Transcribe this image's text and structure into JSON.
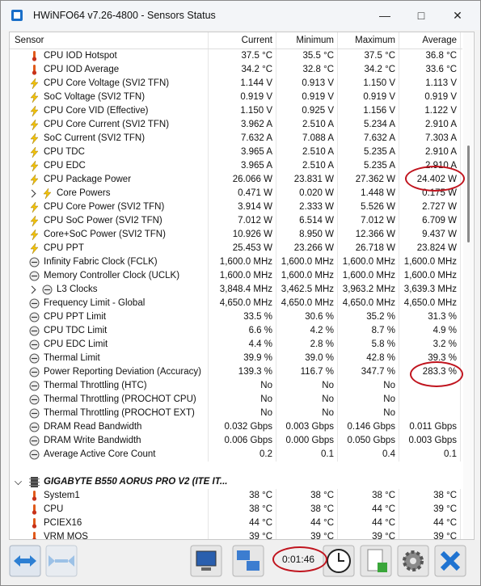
{
  "window": {
    "title": "HWiNFO64 v7.26-4800 - Sensors Status"
  },
  "columns": [
    "Sensor",
    "Current",
    "Minimum",
    "Maximum",
    "Average"
  ],
  "sections": [
    {
      "rows": [
        {
          "icon": "temp",
          "cells": [
            "CPU IOD Hotspot",
            "37.5 °C",
            "35.5 °C",
            "37.5 °C",
            "36.8 °C"
          ]
        },
        {
          "icon": "temp",
          "cells": [
            "CPU IOD Average",
            "34.2 °C",
            "32.8 °C",
            "34.2 °C",
            "33.6 °C"
          ]
        },
        {
          "icon": "bolt",
          "cells": [
            "CPU Core Voltage (SVI2 TFN)",
            "1.144 V",
            "0.913 V",
            "1.150 V",
            "1.113 V"
          ]
        },
        {
          "icon": "bolt",
          "cells": [
            "SoC Voltage (SVI2 TFN)",
            "0.919 V",
            "0.919 V",
            "0.919 V",
            "0.919 V"
          ]
        },
        {
          "icon": "bolt",
          "cells": [
            "CPU Core VID (Effective)",
            "1.150 V",
            "0.925 V",
            "1.156 V",
            "1.122 V"
          ]
        },
        {
          "icon": "bolt",
          "cells": [
            "CPU Core Current (SVI2 TFN)",
            "3.962 A",
            "2.510 A",
            "5.234 A",
            "2.910 A"
          ]
        },
        {
          "icon": "bolt",
          "cells": [
            "SoC Current (SVI2 TFN)",
            "7.632 A",
            "7.088 A",
            "7.632 A",
            "7.303 A"
          ]
        },
        {
          "icon": "bolt",
          "cells": [
            "CPU TDC",
            "3.965 A",
            "2.510 A",
            "5.235 A",
            "2.910 A"
          ]
        },
        {
          "icon": "bolt",
          "cells": [
            "CPU EDC",
            "3.965 A",
            "2.510 A",
            "5.235 A",
            "2.910 A"
          ]
        },
        {
          "icon": "bolt",
          "cells": [
            "CPU Package Power",
            "26.066 W",
            "23.831 W",
            "27.362 W",
            "24.402 W"
          ]
        },
        {
          "icon": "bolt",
          "expand": true,
          "cells": [
            "Core Powers",
            "0.471 W",
            "0.020 W",
            "1.448 W",
            "0.175 W"
          ]
        },
        {
          "icon": "bolt",
          "cells": [
            "CPU Core Power (SVI2 TFN)",
            "3.914 W",
            "2.333 W",
            "5.526 W",
            "2.727 W"
          ]
        },
        {
          "icon": "bolt",
          "cells": [
            "CPU SoC Power (SVI2 TFN)",
            "7.012 W",
            "6.514 W",
            "7.012 W",
            "6.709 W"
          ]
        },
        {
          "icon": "bolt",
          "cells": [
            "Core+SoC Power (SVI2 TFN)",
            "10.926 W",
            "8.950 W",
            "12.366 W",
            "9.437 W"
          ]
        },
        {
          "icon": "bolt",
          "cells": [
            "CPU PPT",
            "25.453 W",
            "23.266 W",
            "26.718 W",
            "23.824 W"
          ]
        },
        {
          "icon": "gauge",
          "cells": [
            "Infinity Fabric Clock (FCLK)",
            "1,600.0 MHz",
            "1,600.0 MHz",
            "1,600.0 MHz",
            "1,600.0 MHz"
          ]
        },
        {
          "icon": "gauge",
          "cells": [
            "Memory Controller Clock (UCLK)",
            "1,600.0 MHz",
            "1,600.0 MHz",
            "1,600.0 MHz",
            "1,600.0 MHz"
          ]
        },
        {
          "icon": "gauge",
          "expand": true,
          "cells": [
            "L3 Clocks",
            "3,848.4 MHz",
            "3,462.5 MHz",
            "3,963.2 MHz",
            "3,639.3 MHz"
          ]
        },
        {
          "icon": "gauge",
          "cells": [
            "Frequency Limit - Global",
            "4,650.0 MHz",
            "4,650.0 MHz",
            "4,650.0 MHz",
            "4,650.0 MHz"
          ]
        },
        {
          "icon": "gauge",
          "cells": [
            "CPU PPT Limit",
            "33.5 %",
            "30.6 %",
            "35.2 %",
            "31.3 %"
          ]
        },
        {
          "icon": "gauge",
          "cells": [
            "CPU TDC Limit",
            "6.6 %",
            "4.2 %",
            "8.7 %",
            "4.9 %"
          ]
        },
        {
          "icon": "gauge",
          "cells": [
            "CPU EDC Limit",
            "4.4 %",
            "2.8 %",
            "5.8 %",
            "3.2 %"
          ]
        },
        {
          "icon": "gauge",
          "cells": [
            "Thermal Limit",
            "39.9 %",
            "39.0 %",
            "42.8 %",
            "39.3 %"
          ]
        },
        {
          "icon": "gauge",
          "cells": [
            "Power Reporting Deviation (Accuracy)",
            "139.3 %",
            "116.7 %",
            "347.7 %",
            "283.3 %"
          ]
        },
        {
          "icon": "gauge",
          "cells": [
            "Thermal Throttling (HTC)",
            "No",
            "No",
            "No"
          ]
        },
        {
          "icon": "gauge",
          "cells": [
            "Thermal Throttling (PROCHOT CPU)",
            "No",
            "No",
            "No"
          ]
        },
        {
          "icon": "gauge",
          "cells": [
            "Thermal Throttling (PROCHOT EXT)",
            "No",
            "No",
            "No"
          ]
        },
        {
          "icon": "gauge",
          "cells": [
            "DRAM Read Bandwidth",
            "0.032 Gbps",
            "0.003 Gbps",
            "0.146 Gbps",
            "0.011 Gbps"
          ]
        },
        {
          "icon": "gauge",
          "cells": [
            "DRAM Write Bandwidth",
            "0.006 Gbps",
            "0.000 Gbps",
            "0.050 Gbps",
            "0.003 Gbps"
          ]
        },
        {
          "icon": "gauge",
          "cells": [
            "Average Active Core Count",
            "0.2",
            "0.1",
            "0.4",
            "0.1"
          ]
        }
      ]
    },
    {
      "title": "GIGABYTE B550 AORUS PRO V2 (ITE IT...",
      "rows": [
        {
          "icon": "temp",
          "cells": [
            "System1",
            "38 °C",
            "38 °C",
            "38 °C",
            "38 °C"
          ]
        },
        {
          "icon": "temp",
          "cells": [
            "CPU",
            "38 °C",
            "38 °C",
            "44 °C",
            "39 °C"
          ]
        },
        {
          "icon": "temp",
          "cells": [
            "PCIEX16",
            "44 °C",
            "44 °C",
            "44 °C",
            "44 °C"
          ]
        },
        {
          "icon": "temp",
          "cells": [
            "VRM MOS",
            "39 °C",
            "39 °C",
            "39 °C",
            "39 °C"
          ]
        }
      ]
    }
  ],
  "toolbar": {
    "timer": "0:01:46"
  }
}
